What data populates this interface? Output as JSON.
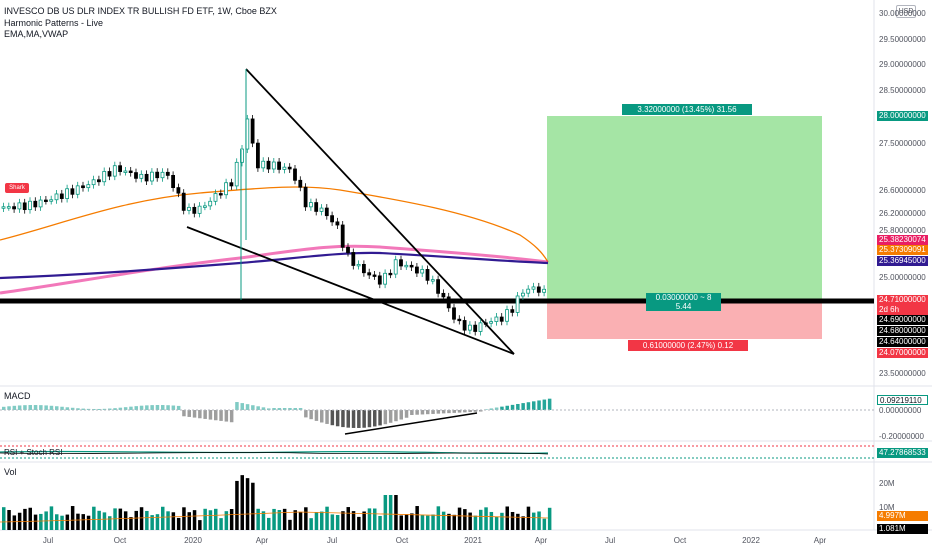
{
  "header": {
    "title": "INVESCO DB US DLR INDEX TR BULLISH FD ETF, 1W, Cboe BZX",
    "indicator1": "Harmonic Patterns - Live",
    "indicator2": "EMA,MA,VWAP"
  },
  "currency": "USD",
  "price_axis": [
    "30.00000000",
    "29.50000000",
    "29.00000000",
    "28.50000000",
    "27.50000000",
    "26.60000000",
    "26.20000000",
    "25.80000000",
    "25.00000000",
    "23.50000000"
  ],
  "price_tags": [
    {
      "label": "28.00000000",
      "color": "#089981"
    },
    {
      "label": "25.38230074",
      "color": "#e91e63"
    },
    {
      "label": "25.37309091",
      "color": "#f57c00"
    },
    {
      "label": "25.36945000",
      "color": "#311b92"
    },
    {
      "label": "24.71000000",
      "color": "#f23645"
    },
    {
      "label": "2d 6h",
      "color": "#f23645"
    },
    {
      "label": "24.69000000",
      "color": "#000000"
    },
    {
      "label": "24.68000000",
      "color": "#000000"
    },
    {
      "label": "24.64000000",
      "color": "#000000"
    },
    {
      "label": "24.07000000",
      "color": "#f23645"
    }
  ],
  "position": {
    "target_label": "3.32000000 (13.45%) 31.56",
    "stop_label": "0.61000000 (2.47%) 0.12",
    "center_label_1": "0.03000000 ~ 8",
    "center_label_2": "5.44"
  },
  "shark_label": "Shark",
  "macd": {
    "label": "MACD",
    "axis": [
      "0.00000000",
      "-0.20000000"
    ],
    "value_tag": "0.09219110"
  },
  "rsi": {
    "label": "RSI + Stoch RSI",
    "value_tag": "47.27868533"
  },
  "volume": {
    "label": "Vol",
    "axis": [
      "20M",
      "10M"
    ],
    "tag1": "4.997M",
    "tag2": "1.081M"
  },
  "time_axis": [
    "Jul",
    "Oct",
    "2020",
    "Apr",
    "Jul",
    "Oct",
    "2021",
    "Apr",
    "Jul",
    "Oct",
    "2022",
    "Apr"
  ],
  "colors": {
    "up": "#089981",
    "down": "#000000",
    "accent": "#2962ff"
  }
}
